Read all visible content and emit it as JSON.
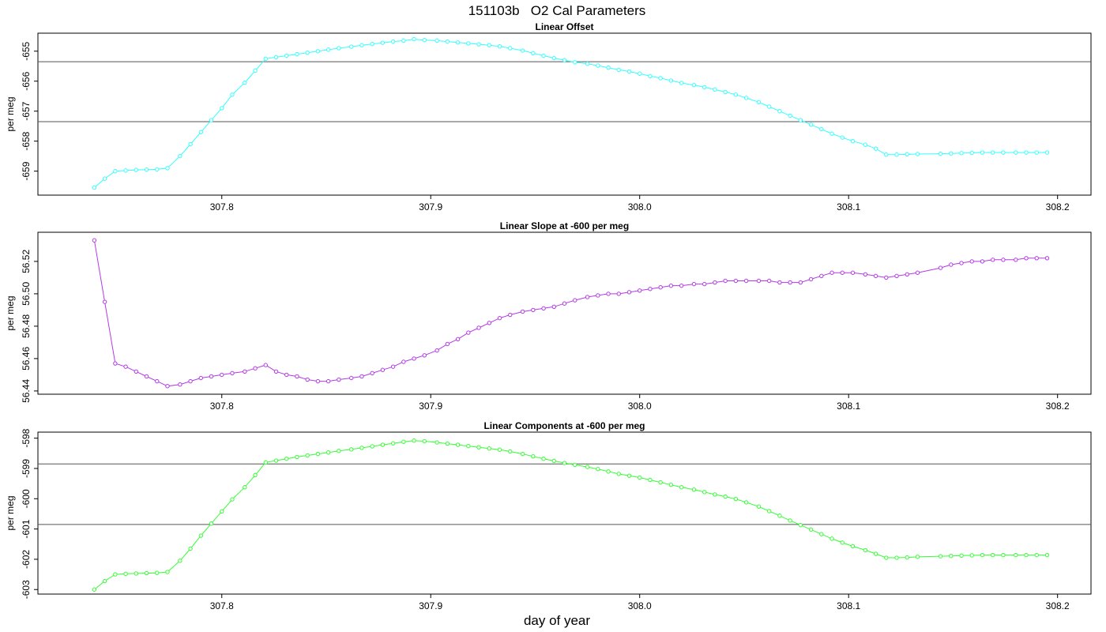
{
  "main_title": "151103b   O2 Cal Parameters",
  "x_axis_label": "day of year",
  "chart_data": [
    {
      "type": "line",
      "title": "Linear Offset",
      "ylabel": "per meg",
      "xlabel": "day of year",
      "color": "#33ffff",
      "xlim": [
        307.712,
        308.216
      ],
      "ylim": [
        -659.8,
        -654.4
      ],
      "x_ticks": [
        "307.8",
        "307.9",
        "308.0",
        "308.1",
        "308.2"
      ],
      "y_ticks": [
        "-659",
        "-658",
        "-657",
        "-656",
        "-655"
      ],
      "hlines": [
        -655.35,
        -657.35
      ],
      "grid": false,
      "points": [
        [
          307.739,
          -659.55
        ],
        [
          307.744,
          -659.25
        ],
        [
          307.749,
          -659.0
        ],
        [
          307.754,
          -658.98
        ],
        [
          307.759,
          -658.96
        ],
        [
          307.764,
          -658.95
        ],
        [
          307.769,
          -658.94
        ],
        [
          307.774,
          -658.9
        ],
        [
          307.78,
          -658.5
        ],
        [
          307.785,
          -658.1
        ],
        [
          307.79,
          -657.7
        ],
        [
          307.795,
          -657.3
        ],
        [
          307.8,
          -656.9
        ],
        [
          307.805,
          -656.45
        ],
        [
          307.811,
          -656.05
        ],
        [
          307.816,
          -655.65
        ],
        [
          307.821,
          -655.25
        ],
        [
          307.826,
          -655.2
        ],
        [
          307.831,
          -655.15
        ],
        [
          307.836,
          -655.1
        ],
        [
          307.841,
          -655.05
        ],
        [
          307.846,
          -655.0
        ],
        [
          307.851,
          -654.95
        ],
        [
          307.856,
          -654.9
        ],
        [
          307.862,
          -654.85
        ],
        [
          307.867,
          -654.8
        ],
        [
          307.872,
          -654.76
        ],
        [
          307.877,
          -654.72
        ],
        [
          307.882,
          -654.68
        ],
        [
          307.887,
          -654.65
        ],
        [
          307.892,
          -654.6
        ],
        [
          307.897,
          -654.63
        ],
        [
          307.903,
          -654.65
        ],
        [
          307.908,
          -654.68
        ],
        [
          307.913,
          -654.71
        ],
        [
          307.918,
          -654.74
        ],
        [
          307.923,
          -654.77
        ],
        [
          307.928,
          -654.8
        ],
        [
          307.933,
          -654.84
        ],
        [
          307.938,
          -654.9
        ],
        [
          307.944,
          -654.98
        ],
        [
          307.949,
          -655.07
        ],
        [
          307.954,
          -655.15
        ],
        [
          307.959,
          -655.23
        ],
        [
          307.964,
          -655.3
        ],
        [
          307.969,
          -655.37
        ],
        [
          307.975,
          -655.42
        ],
        [
          307.98,
          -655.48
        ],
        [
          307.985,
          -655.55
        ],
        [
          307.99,
          -655.62
        ],
        [
          307.995,
          -655.68
        ],
        [
          308.0,
          -655.75
        ],
        [
          308.005,
          -655.83
        ],
        [
          308.01,
          -655.9
        ],
        [
          308.015,
          -655.98
        ],
        [
          308.02,
          -656.06
        ],
        [
          308.026,
          -656.13
        ],
        [
          308.031,
          -656.2
        ],
        [
          308.036,
          -656.28
        ],
        [
          308.041,
          -656.36
        ],
        [
          308.046,
          -656.45
        ],
        [
          308.051,
          -656.56
        ],
        [
          308.057,
          -656.7
        ],
        [
          308.062,
          -656.85
        ],
        [
          308.067,
          -657.0
        ],
        [
          308.072,
          -657.15
        ],
        [
          308.077,
          -657.3
        ],
        [
          308.082,
          -657.45
        ],
        [
          308.087,
          -657.6
        ],
        [
          308.092,
          -657.75
        ],
        [
          308.097,
          -657.88
        ],
        [
          308.102,
          -658.0
        ],
        [
          308.108,
          -658.12
        ],
        [
          308.113,
          -658.25
        ],
        [
          308.118,
          -658.45
        ],
        [
          308.123,
          -658.45
        ],
        [
          308.128,
          -658.44
        ],
        [
          308.133,
          -658.43
        ],
        [
          308.144,
          -658.42
        ],
        [
          308.149,
          -658.41
        ],
        [
          308.154,
          -658.4
        ],
        [
          308.159,
          -658.39
        ],
        [
          308.164,
          -658.38
        ],
        [
          308.169,
          -658.38
        ],
        [
          308.174,
          -658.38
        ],
        [
          308.18,
          -658.38
        ],
        [
          308.185,
          -658.38
        ],
        [
          308.19,
          -658.38
        ],
        [
          308.195,
          -658.38
        ]
      ]
    },
    {
      "type": "line",
      "title": "Linear Slope at -600 per meg",
      "ylabel": "per meg",
      "xlabel": "day of year",
      "color": "#b33ae8",
      "xlim": [
        307.712,
        308.216
      ],
      "ylim": [
        56.438,
        56.538
      ],
      "x_ticks": [
        "307.8",
        "307.9",
        "308.0",
        "308.1",
        "308.2"
      ],
      "y_ticks": [
        "56.44",
        "56.46",
        "56.48",
        "56.50",
        "56.52"
      ],
      "hlines": [],
      "grid": false,
      "points": [
        [
          307.739,
          56.533
        ],
        [
          307.744,
          56.495
        ],
        [
          307.749,
          56.457
        ],
        [
          307.754,
          56.455
        ],
        [
          307.759,
          56.452
        ],
        [
          307.764,
          56.449
        ],
        [
          307.769,
          56.446
        ],
        [
          307.774,
          56.443
        ],
        [
          307.78,
          56.444
        ],
        [
          307.785,
          56.446
        ],
        [
          307.79,
          56.448
        ],
        [
          307.795,
          56.449
        ],
        [
          307.8,
          56.45
        ],
        [
          307.805,
          56.451
        ],
        [
          307.811,
          56.452
        ],
        [
          307.816,
          56.454
        ],
        [
          307.821,
          56.456
        ],
        [
          307.826,
          56.452
        ],
        [
          307.831,
          56.45
        ],
        [
          307.836,
          56.449
        ],
        [
          307.841,
          56.447
        ],
        [
          307.846,
          56.446
        ],
        [
          307.851,
          56.446
        ],
        [
          307.856,
          56.447
        ],
        [
          307.862,
          56.448
        ],
        [
          307.867,
          56.449
        ],
        [
          307.872,
          56.451
        ],
        [
          307.877,
          56.453
        ],
        [
          307.882,
          56.455
        ],
        [
          307.887,
          56.458
        ],
        [
          307.892,
          56.46
        ],
        [
          307.897,
          56.462
        ],
        [
          307.903,
          56.465
        ],
        [
          307.908,
          56.469
        ],
        [
          307.913,
          56.472
        ],
        [
          307.918,
          56.476
        ],
        [
          307.923,
          56.479
        ],
        [
          307.928,
          56.482
        ],
        [
          307.933,
          56.485
        ],
        [
          307.938,
          56.487
        ],
        [
          307.944,
          56.489
        ],
        [
          307.949,
          56.49
        ],
        [
          307.954,
          56.491
        ],
        [
          307.959,
          56.492
        ],
        [
          307.964,
          56.494
        ],
        [
          307.969,
          56.496
        ],
        [
          307.975,
          56.498
        ],
        [
          307.98,
          56.499
        ],
        [
          307.985,
          56.5
        ],
        [
          307.99,
          56.5
        ],
        [
          307.995,
          56.501
        ],
        [
          308.0,
          56.502
        ],
        [
          308.005,
          56.503
        ],
        [
          308.01,
          56.504
        ],
        [
          308.015,
          56.505
        ],
        [
          308.02,
          56.505
        ],
        [
          308.026,
          56.506
        ],
        [
          308.031,
          56.506
        ],
        [
          308.036,
          56.507
        ],
        [
          308.041,
          56.508
        ],
        [
          308.046,
          56.508
        ],
        [
          308.051,
          56.508
        ],
        [
          308.057,
          56.508
        ],
        [
          308.062,
          56.508
        ],
        [
          308.067,
          56.507
        ],
        [
          308.072,
          56.507
        ],
        [
          308.077,
          56.507
        ],
        [
          308.082,
          56.509
        ],
        [
          308.087,
          56.511
        ],
        [
          308.092,
          56.513
        ],
        [
          308.097,
          56.513
        ],
        [
          308.102,
          56.513
        ],
        [
          308.108,
          56.512
        ],
        [
          308.113,
          56.511
        ],
        [
          308.118,
          56.51
        ],
        [
          308.123,
          56.511
        ],
        [
          308.128,
          56.512
        ],
        [
          308.133,
          56.513
        ],
        [
          308.144,
          56.516
        ],
        [
          308.149,
          56.518
        ],
        [
          308.154,
          56.519
        ],
        [
          308.159,
          56.52
        ],
        [
          308.164,
          56.52
        ],
        [
          308.169,
          56.521
        ],
        [
          308.174,
          56.521
        ],
        [
          308.18,
          56.521
        ],
        [
          308.185,
          56.522
        ],
        [
          308.19,
          56.522
        ],
        [
          308.195,
          56.522
        ]
      ]
    },
    {
      "type": "line",
      "title": "Linear Components at -600 per meg",
      "ylabel": "per meg",
      "xlabel": "day of year",
      "color": "#33ff33",
      "xlim": [
        307.712,
        308.216
      ],
      "ylim": [
        -603.15,
        -597.8
      ],
      "x_ticks": [
        "307.8",
        "307.9",
        "308.0",
        "308.1",
        "308.2"
      ],
      "y_ticks": [
        "-603",
        "-602",
        "-601",
        "-600",
        "-599",
        "-598"
      ],
      "hlines": [
        -598.85,
        -600.85
      ],
      "grid": false,
      "points": [
        [
          307.739,
          -603.0
        ],
        [
          307.744,
          -602.72
        ],
        [
          307.749,
          -602.5
        ],
        [
          307.754,
          -602.48
        ],
        [
          307.759,
          -602.47
        ],
        [
          307.764,
          -602.46
        ],
        [
          307.769,
          -602.45
        ],
        [
          307.774,
          -602.42
        ],
        [
          307.78,
          -602.05
        ],
        [
          307.785,
          -601.65
        ],
        [
          307.79,
          -601.22
        ],
        [
          307.795,
          -600.82
        ],
        [
          307.8,
          -600.42
        ],
        [
          307.805,
          -600.02
        ],
        [
          307.811,
          -599.62
        ],
        [
          307.816,
          -599.22
        ],
        [
          307.821,
          -598.8
        ],
        [
          307.826,
          -598.74
        ],
        [
          307.831,
          -598.68
        ],
        [
          307.836,
          -598.62
        ],
        [
          307.841,
          -598.57
        ],
        [
          307.846,
          -598.52
        ],
        [
          307.851,
          -598.47
        ],
        [
          307.856,
          -598.42
        ],
        [
          307.862,
          -598.37
        ],
        [
          307.867,
          -598.32
        ],
        [
          307.872,
          -598.27
        ],
        [
          307.877,
          -598.22
        ],
        [
          307.882,
          -598.17
        ],
        [
          307.887,
          -598.12
        ],
        [
          307.892,
          -598.08
        ],
        [
          307.897,
          -598.1
        ],
        [
          307.903,
          -598.14
        ],
        [
          307.908,
          -598.18
        ],
        [
          307.913,
          -598.22
        ],
        [
          307.918,
          -598.26
        ],
        [
          307.923,
          -598.3
        ],
        [
          307.928,
          -598.34
        ],
        [
          307.933,
          -598.38
        ],
        [
          307.938,
          -598.44
        ],
        [
          307.944,
          -598.52
        ],
        [
          307.949,
          -598.6
        ],
        [
          307.954,
          -598.68
        ],
        [
          307.959,
          -598.75
        ],
        [
          307.964,
          -598.82
        ],
        [
          307.969,
          -598.88
        ],
        [
          307.975,
          -598.95
        ],
        [
          307.98,
          -599.02
        ],
        [
          307.985,
          -599.1
        ],
        [
          307.99,
          -599.18
        ],
        [
          307.995,
          -599.24
        ],
        [
          308.0,
          -599.3
        ],
        [
          308.005,
          -599.38
        ],
        [
          308.01,
          -599.46
        ],
        [
          308.015,
          -599.54
        ],
        [
          308.02,
          -599.62
        ],
        [
          308.026,
          -599.7
        ],
        [
          308.031,
          -599.78
        ],
        [
          308.036,
          -599.86
        ],
        [
          308.041,
          -599.93
        ],
        [
          308.046,
          -600.01
        ],
        [
          308.051,
          -600.12
        ],
        [
          308.057,
          -600.26
        ],
        [
          308.062,
          -600.41
        ],
        [
          308.067,
          -600.56
        ],
        [
          308.072,
          -600.72
        ],
        [
          308.077,
          -600.87
        ],
        [
          308.082,
          -601.02
        ],
        [
          308.087,
          -601.17
        ],
        [
          308.092,
          -601.32
        ],
        [
          308.097,
          -601.45
        ],
        [
          308.102,
          -601.57
        ],
        [
          308.108,
          -601.7
        ],
        [
          308.113,
          -601.82
        ],
        [
          308.118,
          -601.95
        ],
        [
          308.123,
          -601.95
        ],
        [
          308.128,
          -601.94
        ],
        [
          308.133,
          -601.92
        ],
        [
          308.144,
          -601.9
        ],
        [
          308.149,
          -601.89
        ],
        [
          308.154,
          -601.88
        ],
        [
          308.159,
          -601.87
        ],
        [
          308.164,
          -601.86
        ],
        [
          308.169,
          -601.86
        ],
        [
          308.174,
          -601.86
        ],
        [
          308.18,
          -601.86
        ],
        [
          308.185,
          -601.86
        ],
        [
          308.19,
          -601.86
        ],
        [
          308.195,
          -601.86
        ]
      ]
    }
  ]
}
